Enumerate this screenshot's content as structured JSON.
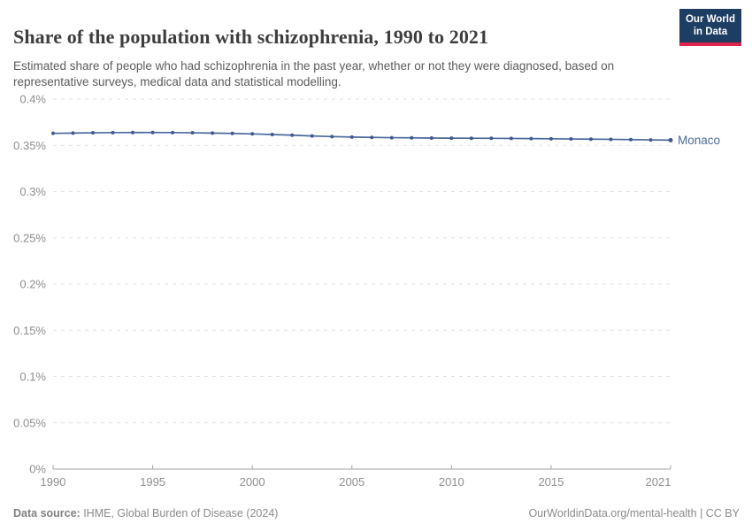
{
  "header": {
    "title": "Share of the population with schizophrenia, 1990 to 2021",
    "subtitle": "Estimated share of people who had schizophrenia in the past year, whether or not they were diagnosed, based on representative surveys, medical data and statistical modelling.",
    "logo": {
      "line1": "Our World",
      "line2": "in Data",
      "bg_color": "#1d3d63",
      "accent_color": "#e0234a"
    }
  },
  "chart_data": {
    "type": "line",
    "title": "Share of the population with schizophrenia, 1990 to 2021",
    "xlabel": "",
    "ylabel": "",
    "xlim": [
      1990,
      2021
    ],
    "ylim": [
      0,
      0.4
    ],
    "grid": "horizontal-dashed",
    "legend_position": "end-of-line-label",
    "x_ticks": [
      1990,
      1995,
      2000,
      2005,
      2010,
      2015,
      2021
    ],
    "y_ticks": [
      {
        "value": 0,
        "label": "0%"
      },
      {
        "value": 0.05,
        "label": "0.05%"
      },
      {
        "value": 0.1,
        "label": "0.1%"
      },
      {
        "value": 0.15,
        "label": "0.15%"
      },
      {
        "value": 0.2,
        "label": "0.2%"
      },
      {
        "value": 0.25,
        "label": "0.25%"
      },
      {
        "value": 0.3,
        "label": "0.3%"
      },
      {
        "value": 0.35,
        "label": "0.35%"
      },
      {
        "value": 0.4,
        "label": "0.4%"
      }
    ],
    "x": [
      1990,
      1991,
      1992,
      1993,
      1994,
      1995,
      1996,
      1997,
      1998,
      1999,
      2000,
      2001,
      2002,
      2003,
      2004,
      2005,
      2006,
      2007,
      2008,
      2009,
      2010,
      2011,
      2012,
      2013,
      2014,
      2015,
      2016,
      2017,
      2018,
      2019,
      2020,
      2021
    ],
    "series": [
      {
        "name": "Monaco",
        "color": "#4c6a9c",
        "point_color": "#41598f",
        "values": [
          0.363,
          0.3633,
          0.3636,
          0.3638,
          0.3639,
          0.3639,
          0.3638,
          0.3636,
          0.3633,
          0.3629,
          0.3624,
          0.3617,
          0.361,
          0.3602,
          0.3595,
          0.359,
          0.3586,
          0.3583,
          0.3581,
          0.3579,
          0.3578,
          0.3577,
          0.3576,
          0.3575,
          0.3573,
          0.3571,
          0.3569,
          0.3567,
          0.3565,
          0.3562,
          0.3559,
          0.3556
        ]
      }
    ],
    "colors": {
      "gridline": "#e2e2e2",
      "axis": "#a5a5a5",
      "tick_label": "#8f8f8f"
    }
  },
  "footer": {
    "source_label": "Data source:",
    "source_text": " IHME, Global Burden of Disease (2024)",
    "attribution": "OurWorldinData.org/mental-health | CC BY"
  }
}
